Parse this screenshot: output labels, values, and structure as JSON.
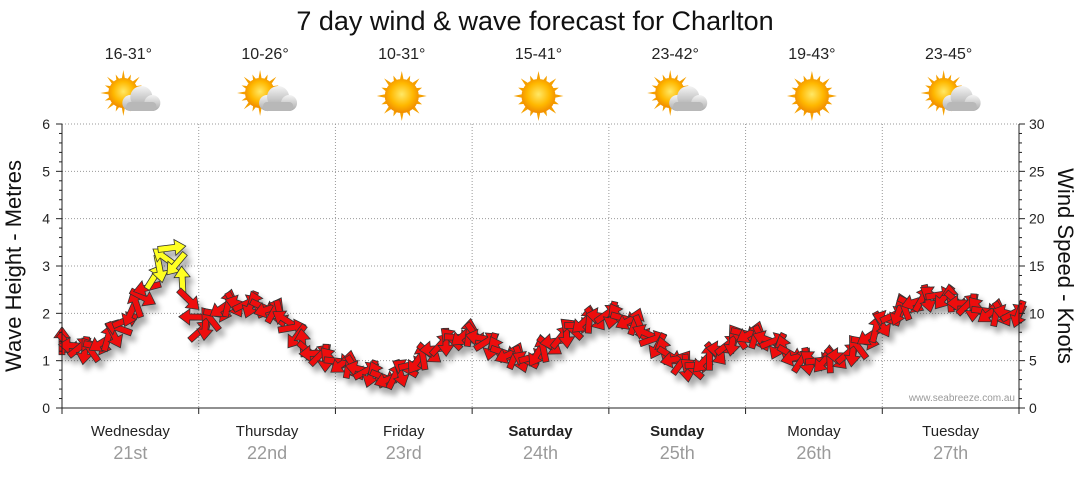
{
  "chart_data": {
    "type": "line",
    "title": "7 day wind & wave forecast for Charlton",
    "ylabel_left": "Wave Height - Metres",
    "ylabel_right": "Wind Speed - Knots",
    "ylim_left": [
      0,
      6
    ],
    "ylim_right": [
      0,
      30
    ],
    "yticks_left": [
      "0",
      "1",
      "2",
      "3",
      "4",
      "5",
      "6"
    ],
    "yticks_right": [
      "0",
      "5",
      "10",
      "15",
      "20",
      "25",
      "30"
    ],
    "grid": true,
    "watermark": "www.seabreeze.com.au",
    "days": [
      {
        "name": "Wednesday",
        "date": "21st",
        "temp": "16-31°",
        "icon": "sun-cloud-icon",
        "bold": false
      },
      {
        "name": "Thursday",
        "date": "22nd",
        "temp": "10-26°",
        "icon": "sun-cloud-icon",
        "bold": false
      },
      {
        "name": "Friday",
        "date": "23rd",
        "temp": "10-31°",
        "icon": "sun-icon",
        "bold": false
      },
      {
        "name": "Saturday",
        "date": "24th",
        "temp": "15-41°",
        "icon": "sun-icon",
        "bold": true
      },
      {
        "name": "Sunday",
        "date": "25th",
        "temp": "23-42°",
        "icon": "sun-cloud-icon",
        "bold": true
      },
      {
        "name": "Monday",
        "date": "26th",
        "temp": "19-43°",
        "icon": "sun-icon",
        "bold": false
      },
      {
        "name": "Tuesday",
        "date": "27th",
        "temp": "23-45°",
        "icon": "sun-cloud-icon",
        "bold": false
      }
    ],
    "series": [
      {
        "name": "Wind Speed - Knots",
        "unit": "knots",
        "x_day": [
          0,
          0.2,
          0.4,
          0.6,
          0.8,
          1.0,
          1.2,
          1.4,
          1.6,
          1.8,
          2.0,
          2.2,
          2.4,
          2.6,
          2.8,
          3.0,
          3.2,
          3.4,
          3.6,
          3.8,
          4.0,
          4.2,
          4.4,
          4.6,
          4.8,
          5.0,
          5.2,
          5.4,
          5.6,
          5.8,
          6.0,
          6.2,
          6.4,
          6.6,
          6.8,
          7.0
        ],
        "values": [
          7,
          6,
          8,
          12,
          17,
          8,
          11,
          11,
          10,
          6,
          5,
          4,
          3,
          5,
          7,
          8,
          6,
          5,
          7,
          9,
          10,
          9,
          6,
          4,
          6,
          8,
          7,
          5,
          5,
          6,
          9,
          11,
          12,
          11,
          10,
          10
        ],
        "colors": {
          "normal": "#ee1111",
          "strong": "#ffff22"
        },
        "strong_threshold": 13
      }
    ]
  }
}
